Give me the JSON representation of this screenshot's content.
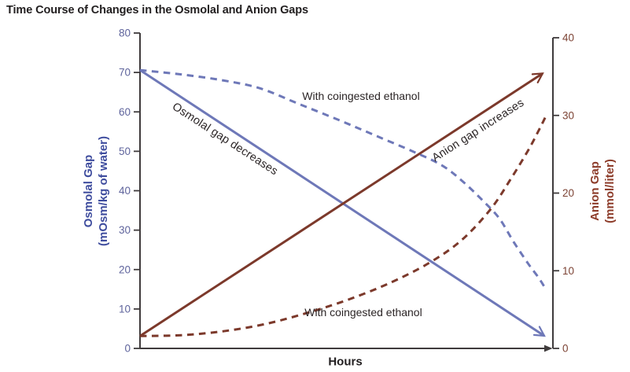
{
  "title": "Time Course of Changes in the Osmolal and Anion Gaps",
  "colors": {
    "osmolal_line": "#6e78b8",
    "anion_line": "#7c392b",
    "osmolal_axis_title": "#3f4d9e",
    "anion_axis_title": "#8d3c2a",
    "osmolal_tick_label": "#5f649c",
    "anion_tick_label": "#7d4435",
    "axis_line": "#3f3b3c",
    "annotation_text": "#2b2526",
    "title_text": "#232021"
  },
  "chart_data": {
    "type": "line",
    "title": "Time Course of Changes in the Osmolal and Anion Gaps",
    "grid": false,
    "legend": "inline-annotations",
    "x_axis": {
      "label": "Hours",
      "range": [
        0,
        1
      ],
      "ticks": []
    },
    "left_axis": {
      "label": "Osmolal Gap",
      "units": "(mOsm/kg of water)",
      "range": [
        0,
        80
      ],
      "ticks": [
        0,
        10,
        20,
        30,
        40,
        50,
        60,
        70,
        80
      ]
    },
    "right_axis": {
      "label": "Anion Gap",
      "units": "(mmol/liter)",
      "range": [
        0,
        40
      ],
      "ticks": [
        0,
        10,
        20,
        30,
        40
      ]
    },
    "series": [
      {
        "name": "osmolal-gap",
        "label": "Osmolal gap decreases",
        "axis": "left",
        "style": "solid",
        "arrow": true,
        "color_key": "osmolal_line",
        "points": [
          [
            0,
            70.6
          ],
          [
            0.979,
            3.2
          ]
        ]
      },
      {
        "name": "osmolal-gap-with-ethanol",
        "label": "With coingested ethanol",
        "axis": "left",
        "style": "dashed",
        "arrow": false,
        "color_key": "osmolal_line",
        "points": [
          [
            0,
            70.6
          ],
          [
            0.1,
            69.5
          ],
          [
            0.2,
            68.0
          ],
          [
            0.29,
            66.0
          ],
          [
            0.385,
            62.0
          ],
          [
            0.48,
            58.0
          ],
          [
            0.57,
            54.0
          ],
          [
            0.66,
            50.0
          ],
          [
            0.73,
            46.5
          ],
          [
            0.78,
            42.5
          ],
          [
            0.83,
            37.5
          ],
          [
            0.87,
            33.0
          ],
          [
            0.905,
            27.0
          ],
          [
            0.94,
            21.5
          ],
          [
            0.965,
            18.0
          ],
          [
            0.98,
            15.5
          ]
        ]
      },
      {
        "name": "anion-gap",
        "label": "Anion gap increases",
        "axis": "right",
        "style": "solid",
        "arrow": true,
        "color_key": "anion_line",
        "points": [
          [
            0,
            1.6
          ],
          [
            0.975,
            35.4
          ]
        ]
      },
      {
        "name": "anion-gap-with-ethanol",
        "label": "With coingested ethanol",
        "axis": "right",
        "style": "dashed",
        "arrow": false,
        "color_key": "anion_line",
        "points": [
          [
            0,
            1.6
          ],
          [
            0.1,
            1.7
          ],
          [
            0.2,
            2.2
          ],
          [
            0.3,
            3.1
          ],
          [
            0.4,
            4.5
          ],
          [
            0.5,
            6.2
          ],
          [
            0.6,
            8.3
          ],
          [
            0.7,
            11.0
          ],
          [
            0.78,
            14.0
          ],
          [
            0.85,
            18.0
          ],
          [
            0.9,
            22.0
          ],
          [
            0.94,
            25.5
          ],
          [
            0.965,
            28.0
          ],
          [
            0.982,
            29.8
          ]
        ]
      }
    ]
  }
}
